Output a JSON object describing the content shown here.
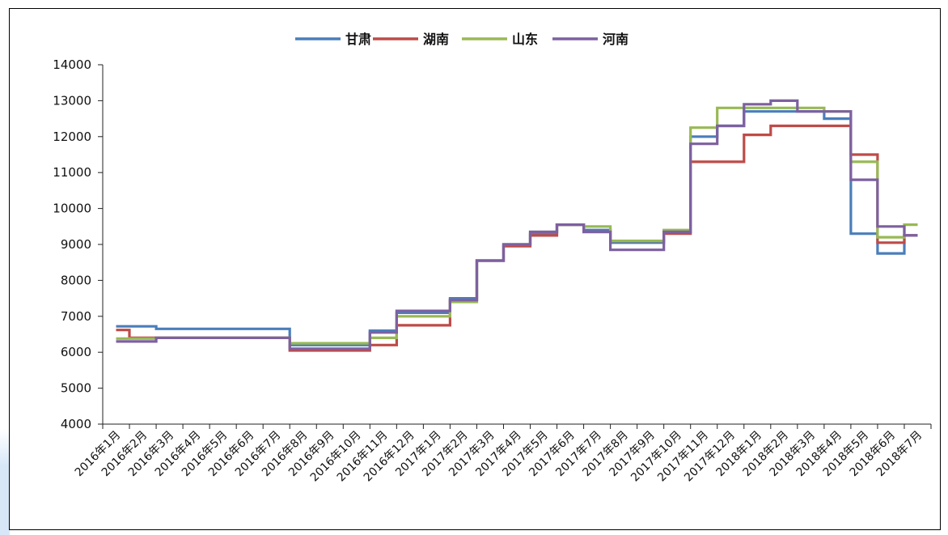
{
  "chart_data": {
    "type": "line",
    "title": "",
    "xlabel": "",
    "ylabel": "",
    "ylim": [
      4000,
      14000
    ],
    "yticks": [
      4000,
      5000,
      6000,
      7000,
      8000,
      9000,
      10000,
      11000,
      12000,
      13000,
      14000
    ],
    "line_style": "step",
    "grid": false,
    "legend_position": "top",
    "categories": [
      "2016年1月",
      "2016年2月",
      "2016年3月",
      "2016年4月",
      "2016年5月",
      "2016年6月",
      "2016年7月",
      "2016年8月",
      "2016年9月",
      "2016年10月",
      "2016年11月",
      "2016年12月",
      "2017年1月",
      "2017年2月",
      "2017年3月",
      "2017年4月",
      "2017年5月",
      "2017年6月",
      "2017年7月",
      "2017年8月",
      "2017年9月",
      "2017年10月",
      "2017年11月",
      "2017年12月",
      "2018年1月",
      "2018年2月",
      "2018年3月",
      "2018年4月",
      "2018年5月",
      "2018年6月",
      "2018年7月"
    ],
    "series": [
      {
        "name": "甘肃",
        "color": "#4a7ebb",
        "values": [
          6720,
          6720,
          6650,
          6650,
          6650,
          6650,
          6650,
          6200,
          6200,
          6200,
          6600,
          7100,
          7100,
          7500,
          8550,
          9000,
          9300,
          9550,
          9400,
          9050,
          9050,
          9350,
          12000,
          12300,
          12700,
          12700,
          12700,
          12500,
          9300,
          8750,
          9250
        ]
      },
      {
        "name": "湖南",
        "color": "#be4b48",
        "values": [
          6620,
          6400,
          6400,
          6400,
          6400,
          6400,
          6400,
          6050,
          6050,
          6050,
          6200,
          6750,
          6750,
          7450,
          8550,
          8950,
          9250,
          9550,
          9350,
          9100,
          9100,
          9300,
          11300,
          11300,
          12050,
          12300,
          12300,
          12300,
          11500,
          9050,
          9250
        ]
      },
      {
        "name": "山东",
        "color": "#98b954",
        "values": [
          6380,
          6380,
          6400,
          6400,
          6400,
          6400,
          6400,
          6250,
          6250,
          6250,
          6400,
          7000,
          7000,
          7400,
          8550,
          9000,
          9350,
          9550,
          9500,
          9100,
          9100,
          9400,
          12250,
          12800,
          12800,
          12800,
          12800,
          12700,
          11300,
          9200,
          9550
        ]
      },
      {
        "name": "河南",
        "color": "#7d60a0",
        "values": [
          6300,
          6300,
          6400,
          6400,
          6400,
          6400,
          6400,
          6100,
          6100,
          6100,
          6550,
          7150,
          7150,
          7450,
          8550,
          9000,
          9350,
          9550,
          9350,
          8850,
          8850,
          9350,
          11800,
          12300,
          12900,
          13000,
          12700,
          12700,
          10800,
          9500,
          9250
        ]
      }
    ]
  }
}
